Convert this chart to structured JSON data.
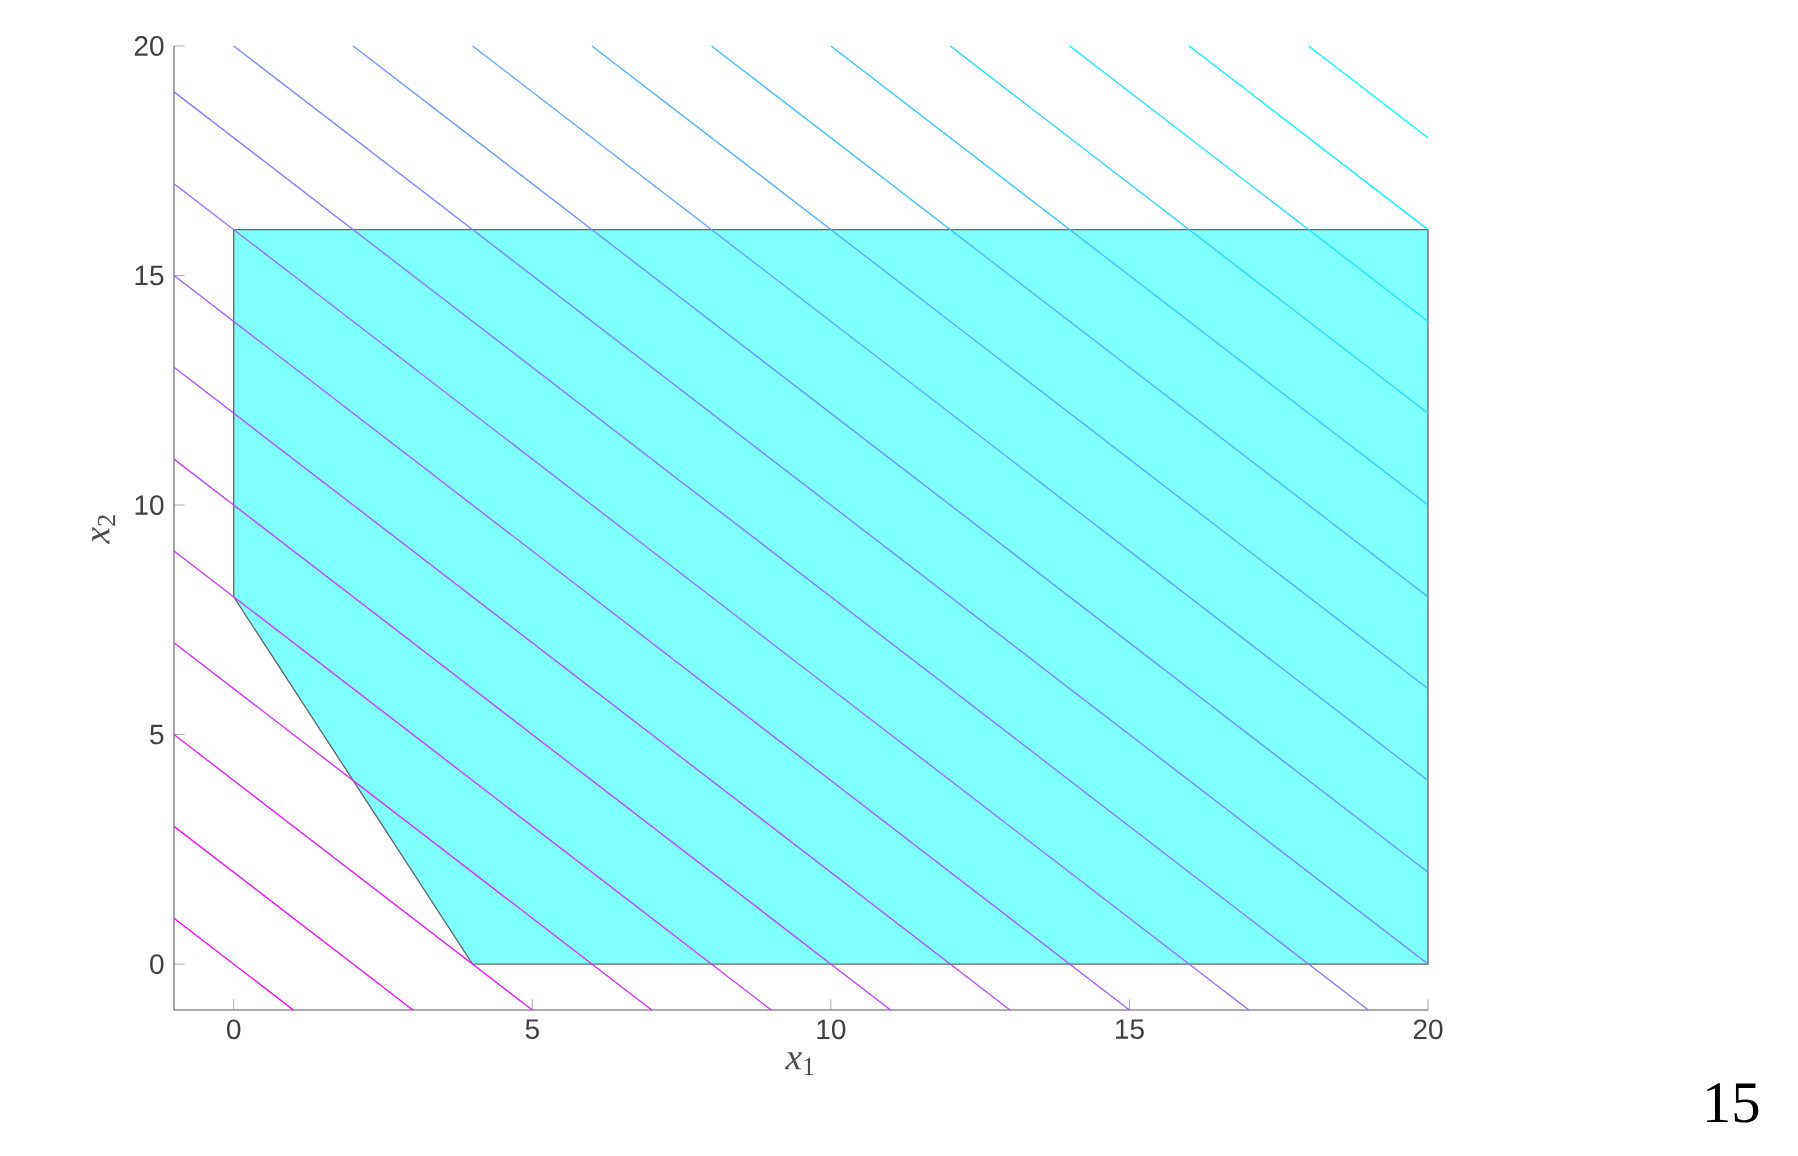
{
  "chart_data": {
    "type": "line",
    "xlabel": "*x*$_{1}$",
    "ylabel": "*x*$_{2}$",
    "xlim": [
      -1,
      20
    ],
    "ylim": [
      -1,
      20
    ],
    "xticks": [
      0,
      5,
      10,
      15,
      20
    ],
    "yticks": [
      0,
      5,
      10,
      15,
      20
    ],
    "grid": false,
    "annotations": [
      "15"
    ],
    "series": [
      {
        "type": "area",
        "color": "#80ffff",
        "x": [
          0,
          20,
          20,
          4,
          0
        ],
        "values": [
          16,
          16,
          0,
          0,
          8
        ]
      },
      {
        "color": "#ff00ff",
        "x": [
          -1,
          1
        ],
        "values": [
          1,
          -1
        ]
      },
      {
        "color": "#f20dff",
        "x": [
          -1,
          3
        ],
        "values": [
          3,
          -1
        ]
      },
      {
        "color": "#e41bff",
        "x": [
          -1,
          5
        ],
        "values": [
          5,
          -1
        ]
      },
      {
        "color": "#d728ff",
        "x": [
          -1,
          7
        ],
        "values": [
          7,
          -1
        ]
      },
      {
        "color": "#c936ff",
        "x": [
          -1,
          9
        ],
        "values": [
          9,
          -1
        ]
      },
      {
        "color": "#bc43ff",
        "x": [
          -1,
          11
        ],
        "values": [
          11,
          -1
        ]
      },
      {
        "color": "#ae51ff",
        "x": [
          -1,
          13
        ],
        "values": [
          13,
          -1
        ]
      },
      {
        "color": "#a15eff",
        "x": [
          -1,
          15
        ],
        "values": [
          15,
          -1
        ]
      },
      {
        "color": "#946bff",
        "x": [
          -1,
          17
        ],
        "values": [
          17,
          -1
        ]
      },
      {
        "color": "#8679ff",
        "x": [
          -1,
          19
        ],
        "values": [
          19,
          -1
        ]
      },
      {
        "color": "#7986ff",
        "x": [
          0,
          20
        ],
        "values": [
          20,
          0
        ]
      },
      {
        "color": "#6b94ff",
        "x": [
          2,
          20
        ],
        "values": [
          20,
          2
        ]
      },
      {
        "color": "#5ea1ff",
        "x": [
          4,
          20
        ],
        "values": [
          20,
          4
        ]
      },
      {
        "color": "#51aeff",
        "x": [
          6,
          20
        ],
        "values": [
          20,
          6
        ]
      },
      {
        "color": "#43bcff",
        "x": [
          8,
          20
        ],
        "values": [
          20,
          8
        ]
      },
      {
        "color": "#36c9ff",
        "x": [
          10,
          20
        ],
        "values": [
          20,
          10
        ]
      },
      {
        "color": "#28d7ff",
        "x": [
          12,
          20
        ],
        "values": [
          20,
          12
        ]
      },
      {
        "color": "#1be4ff",
        "x": [
          14,
          20
        ],
        "values": [
          20,
          14
        ]
      },
      {
        "color": "#0df2ff",
        "x": [
          16,
          20
        ],
        "values": [
          20,
          16
        ]
      },
      {
        "color": "#00ffff",
        "x": [
          18,
          20
        ],
        "values": [
          20,
          18
        ]
      }
    ]
  }
}
